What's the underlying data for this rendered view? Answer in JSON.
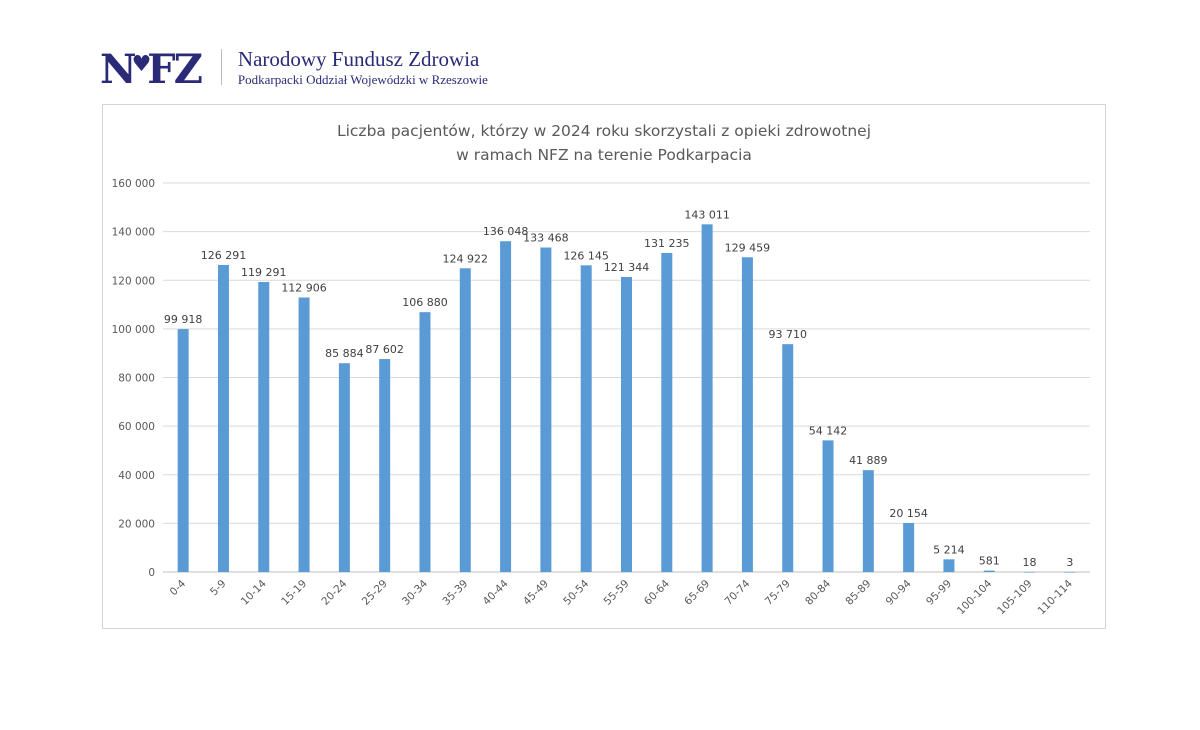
{
  "header": {
    "logo_text": "NFZ",
    "org_name": "Narodowy Fundusz Zdrowia",
    "org_branch": "Podkarpacki Oddział Wojewódzki w Rzeszowie"
  },
  "chart_data": {
    "type": "bar",
    "title_line1": "Liczba pacjentów, którzy w 2024 roku skorzystali z opieki zdrowotnej",
    "title_line2": "w ramach NFZ na terenie Podkarpacia",
    "xlabel": "",
    "ylabel": "",
    "ylim": [
      0,
      160000
    ],
    "yticks": [
      0,
      20000,
      40000,
      60000,
      80000,
      100000,
      120000,
      140000,
      160000
    ],
    "ytick_labels": [
      "0",
      "20 000",
      "40 000",
      "60 000",
      "80 000",
      "100 000",
      "120 000",
      "140 000",
      "160 000"
    ],
    "grid": true,
    "bar_color": "#5b9bd5",
    "categories": [
      "0-4",
      "5-9",
      "10-14",
      "15-19",
      "20-24",
      "25-29",
      "30-34",
      "35-39",
      "40-44",
      "45-49",
      "50-54",
      "55-59",
      "60-64",
      "65-69",
      "70-74",
      "75-79",
      "80-84",
      "85-89",
      "90-94",
      "95-99",
      "100-104",
      "105-109",
      "110-114"
    ],
    "values": [
      99918,
      126291,
      119291,
      112906,
      85884,
      87602,
      106880,
      124922,
      136048,
      133468,
      126145,
      121344,
      131235,
      143011,
      129459,
      93710,
      54142,
      41889,
      20154,
      5214,
      581,
      18,
      3
    ],
    "value_labels": [
      "99 918",
      "126 291",
      "119 291",
      "112 906",
      "85 884",
      "87 602",
      "106 880",
      "124 922",
      "136 048",
      "133 468",
      "126 145",
      "121 344",
      "131 235",
      "143 011",
      "129 459",
      "93 710",
      "54 142",
      "41 889",
      "20 154",
      "5 214",
      "581",
      "18",
      "3"
    ]
  }
}
